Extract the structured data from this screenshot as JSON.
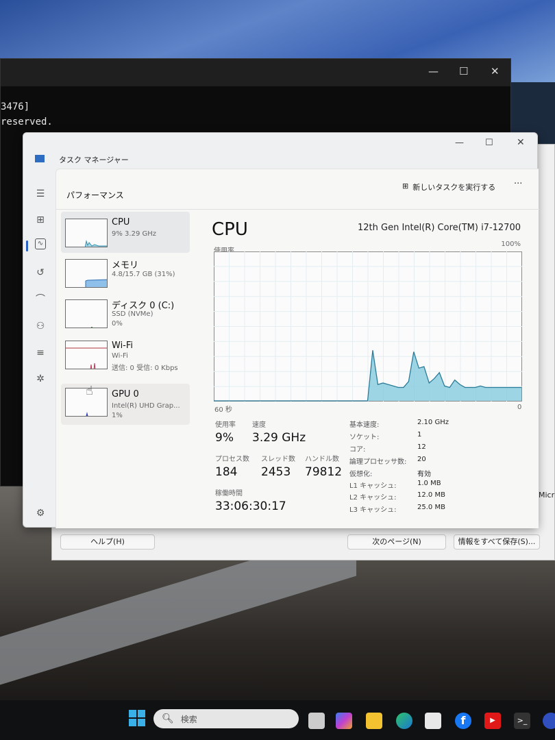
{
  "terminal": {
    "lines": [
      "3476]",
      "reserved."
    ],
    "controls": {
      "minimize": "—",
      "maximize": "☐",
      "close": "✕"
    }
  },
  "behind_dialog": {
    "edge_text": "Micr",
    "buttons": {
      "help": "ヘルプ(H)",
      "next": "次のページ(N)",
      "save_all": "情報をすべて保存(S)..."
    }
  },
  "window": {
    "title": "タスク マネージャー",
    "controls": {
      "minimize": "—",
      "maximize": "☐",
      "close": "✕"
    }
  },
  "nav": {
    "items": [
      "hamburger-icon",
      "processes-icon",
      "performance-icon",
      "app-history-icon",
      "startup-icon",
      "users-icon",
      "details-icon",
      "services-icon"
    ],
    "active": "performance-icon",
    "settings": "gear-icon"
  },
  "header": {
    "title": "パフォーマンス",
    "run_task": "新しいタスクを実行する",
    "more": "···"
  },
  "devices": [
    {
      "name": "CPU",
      "sub1": "9%  3.29 GHz",
      "sub2": ""
    },
    {
      "name": "メモリ",
      "sub1": "4.8/15.7 GB (31%)",
      "sub2": ""
    },
    {
      "name": "ディスク 0 (C:)",
      "sub1": "SSD (NVMe)",
      "sub2": "0%"
    },
    {
      "name": "Wi-Fi",
      "sub1": "Wi-Fi",
      "sub2": "送信: 0 受信: 0 Kbps"
    },
    {
      "name": "GPU 0",
      "sub1": "Intel(R) UHD Grap...",
      "sub2": "1%"
    }
  ],
  "detail": {
    "title": "CPU",
    "model": "12th Gen Intel(R) Core(TM) i7-12700",
    "graph_label": "使用率",
    "graph_max": "100%",
    "graph_time": "60 秒",
    "graph_min": "0",
    "usage_label": "使用率",
    "usage": "9%",
    "speed_label": "速度",
    "speed": "3.29 GHz",
    "proc_label": "プロセス数",
    "proc": "184",
    "thread_label": "スレッド数",
    "thread": "2453",
    "handle_label": "ハンドル数",
    "handle": "79812",
    "uptime_label": "稼働時間",
    "uptime": "33:06:30:17",
    "specs": [
      {
        "k": "基本速度:",
        "v": "2.10 GHz"
      },
      {
        "k": "ソケット:",
        "v": "1"
      },
      {
        "k": "コア:",
        "v": "12"
      },
      {
        "k": "論理プロセッサ数:",
        "v": "20"
      },
      {
        "k": "仮想化:",
        "v": "有効"
      },
      {
        "k": "L1 キャッシュ:",
        "v": "1.0 MB"
      },
      {
        "k": "L2 キャッシュ:",
        "v": "12.0 MB"
      },
      {
        "k": "L3 キャッシュ:",
        "v": "25.0 MB"
      }
    ]
  },
  "chart_data": {
    "type": "area",
    "xlabel": "60 秒",
    "ylim": [
      0,
      100
    ],
    "y_max_label": "100%",
    "color": "#7fc8dc",
    "values": [
      0,
      0,
      0,
      0,
      0,
      0,
      0,
      0,
      0,
      0,
      0,
      0,
      0,
      0,
      0,
      0,
      0,
      0,
      0,
      0,
      0,
      0,
      0,
      0,
      0,
      0,
      0,
      0,
      0,
      0,
      0,
      34,
      11,
      12,
      11,
      10,
      9,
      9,
      13,
      33,
      22,
      23,
      12,
      15,
      19,
      10,
      9,
      14,
      11,
      9,
      9,
      9,
      10,
      9,
      9,
      9,
      9,
      9,
      9,
      9,
      9
    ]
  },
  "taskbar": {
    "search_placeholder": "検索",
    "apps": [
      "start-icon",
      "task-view-icon",
      "copilot-icon",
      "file-explorer-icon",
      "edge-icon",
      "store-icon",
      "facebook-icon",
      "youtube-icon",
      "terminal-icon",
      "app-icon"
    ]
  }
}
